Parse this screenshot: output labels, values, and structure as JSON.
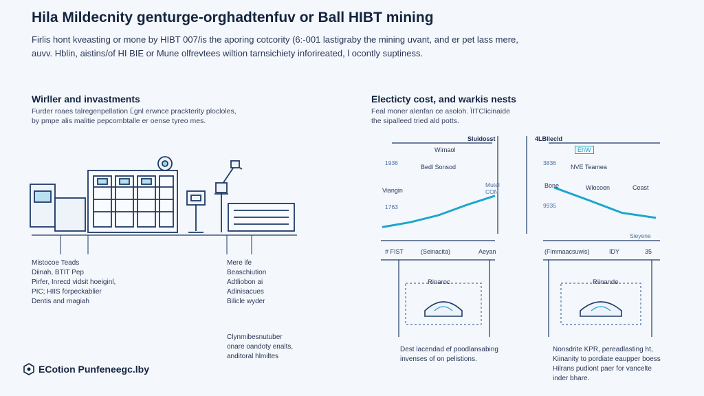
{
  "title": "Hila Mildecnity genturge-orghadtenfuv or Ball HIBT mining",
  "intro": [
    "Firlis hont kveasting or mone by HIBT 007/is the aporing cotcority (6:-001 lastigraby the mining uvant, and er pet lass mere,",
    "auvv. Hblin, aistins/of HI BIE or Mune olfrevtees wiltion tarnsichiety inforireated, l ocontly suptiness."
  ],
  "left_section": {
    "title": "Wirller and invastments",
    "text": [
      "Furder roaes talregenpellation L̈gnl erwnce prackterity plocloles,",
      "by pmpe alis malitie pepcombtalle er oense tyreo mes."
    ],
    "list_left": [
      "Mistocoe Teads",
      "Diinah, BTIT Pep",
      "Pirfer, Inrecd vidsit hoeiginl,",
      "PIC; HIIS forpeckablier",
      "Dentis and rnagiah"
    ],
    "list_right": [
      "Mere ife",
      "Beaschiution",
      "Adtliobon ai",
      "Adinisacues",
      "Bilicle wyder"
    ],
    "bottom_text": [
      "Clynmibesnutuber",
      "onare oandoty enalts,",
      "anditoral hlmiltes"
    ],
    "icons": [
      "server-rack-icon",
      "mining-machine-icon",
      "crane-arm-icon",
      "monitor-stand-icon",
      "gear-icon"
    ]
  },
  "right_section": {
    "title": "Electicty cost, and warkis nests",
    "text": [
      "Feal moner alenfan ce asoloh. ÏITClicinaide",
      "the sipalleed tried ald potts."
    ],
    "chart_left": {
      "header": "Sluidosst",
      "label_top": "Wirnaol",
      "tick_1": "1936",
      "label_mid": "Bedl Sonsod",
      "label_y": "Viangin",
      "tick_2": "1763",
      "annot": [
        "Mutel",
        "CON"
      ],
      "x_labels": [
        "# FIST",
        "(Seinacita)",
        "Aeyan"
      ],
      "box_label": "Rinaroc",
      "caption": [
        "Dest lacendad ef poodlansabing",
        "invenses of on pelistions."
      ]
    },
    "chart_right": {
      "header": "4LBllecld",
      "badge": "EhW",
      "tick_1": "3836",
      "label_mid": "NVE Teamea",
      "label_start": "Bone",
      "label_mid2": "Wlocoen",
      "label_end": "Ceast",
      "tick_2": "9935",
      "annot": "Sieyene",
      "x_labels": [
        "(Fimmaacsuwis)",
        "IDY",
        "35"
      ],
      "box_label": "Riinande",
      "caption": [
        "Nonsdrite KPR, pereadlasting ht,",
        "Kiinanity to pordiate eaupper boess",
        "Hilrans pudiont paer for vancelte",
        "inder bhare."
      ]
    }
  },
  "footer": "ECotion Punfeneegc.lby",
  "chart_data": [
    {
      "type": "line",
      "x": [
        0,
        1,
        2,
        3,
        4
      ],
      "series": [
        {
          "values": [
            0.16,
            0.28,
            0.45,
            0.7,
            0.92
          ]
        }
      ],
      "ylim": [
        0,
        1
      ]
    },
    {
      "type": "line",
      "x": [
        0,
        1,
        2,
        3
      ],
      "series": [
        {
          "values": [
            0.95,
            0.62,
            0.28,
            0.15
          ]
        }
      ],
      "ylim": [
        0,
        1
      ]
    }
  ],
  "colors": {
    "accent": "#1aa6cc",
    "line_dark": "#1d3a66",
    "ink": "#13243f"
  }
}
